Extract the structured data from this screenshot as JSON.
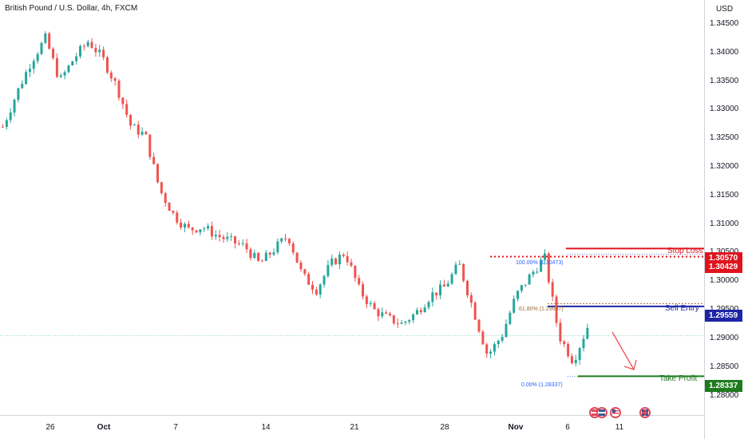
{
  "title": "British Pound / U.S. Dollar, 4h, FXCM",
  "currency": "USD",
  "y_ticks": [
    "1.34500",
    "1.34000",
    "1.33500",
    "1.33000",
    "1.32500",
    "1.32000",
    "1.31500",
    "1.31000",
    "1.30500",
    "1.30000",
    "1.29500",
    "1.29000",
    "1.28500",
    "1.28000"
  ],
  "x_ticks": [
    "26",
    "Oct",
    "7",
    "14",
    "21",
    "28",
    "Nov",
    "6",
    "11"
  ],
  "price_tags": {
    "stop_loss": "1.30570",
    "upper": "1.30429",
    "sell_entry": "1.29559",
    "take_profit": "1.28337"
  },
  "annotations": {
    "stop_loss_label": "Stop Loss",
    "sell_entry_label": "Sell Entry",
    "take_profit_label": "Take Profit",
    "fib_100": "100.00% (1.30473)",
    "fib_618": "61.80% (1.29607)",
    "fib_0": "0.00% (1.28337)"
  },
  "colors": {
    "up": "#26a69a",
    "down": "#ef5350",
    "stop_loss": "#e0131d",
    "sell_entry": "#1e24a6",
    "take_profit": "#1e7a1e",
    "fib": "#9e6b3b"
  },
  "icons": [
    "uk-us-flag-icon",
    "us-flag-icon",
    "uk-flag-icon"
  ],
  "chart_data": {
    "type": "candlestick",
    "symbol": "GBPUSD",
    "timeframe": "4h",
    "ylim": [
      1.277,
      1.3475
    ],
    "levels": {
      "stop_loss": 1.3057,
      "sell_entry": 1.29559,
      "take_profit": 1.28337,
      "fib_100": 1.30473,
      "fib_618": 1.29607,
      "fib_0": 1.28337,
      "upper_tag": 1.30429
    },
    "close_trend": [
      1.327,
      1.333,
      1.3385,
      1.3425,
      1.335,
      1.339,
      1.342,
      1.339,
      1.334,
      1.327,
      1.3255,
      1.316,
      1.3115,
      1.309,
      1.3095,
      1.308,
      1.307,
      1.306,
      1.303,
      1.3055,
      1.308,
      1.301,
      1.2985,
      1.303,
      1.305,
      1.2985,
      1.295,
      1.2935,
      1.2925,
      1.2945,
      1.2975,
      1.299,
      1.303,
      1.295,
      1.287,
      1.2905,
      1.2975,
      1.301,
      1.3042,
      1.2905,
      1.286,
      1.292
    ]
  }
}
